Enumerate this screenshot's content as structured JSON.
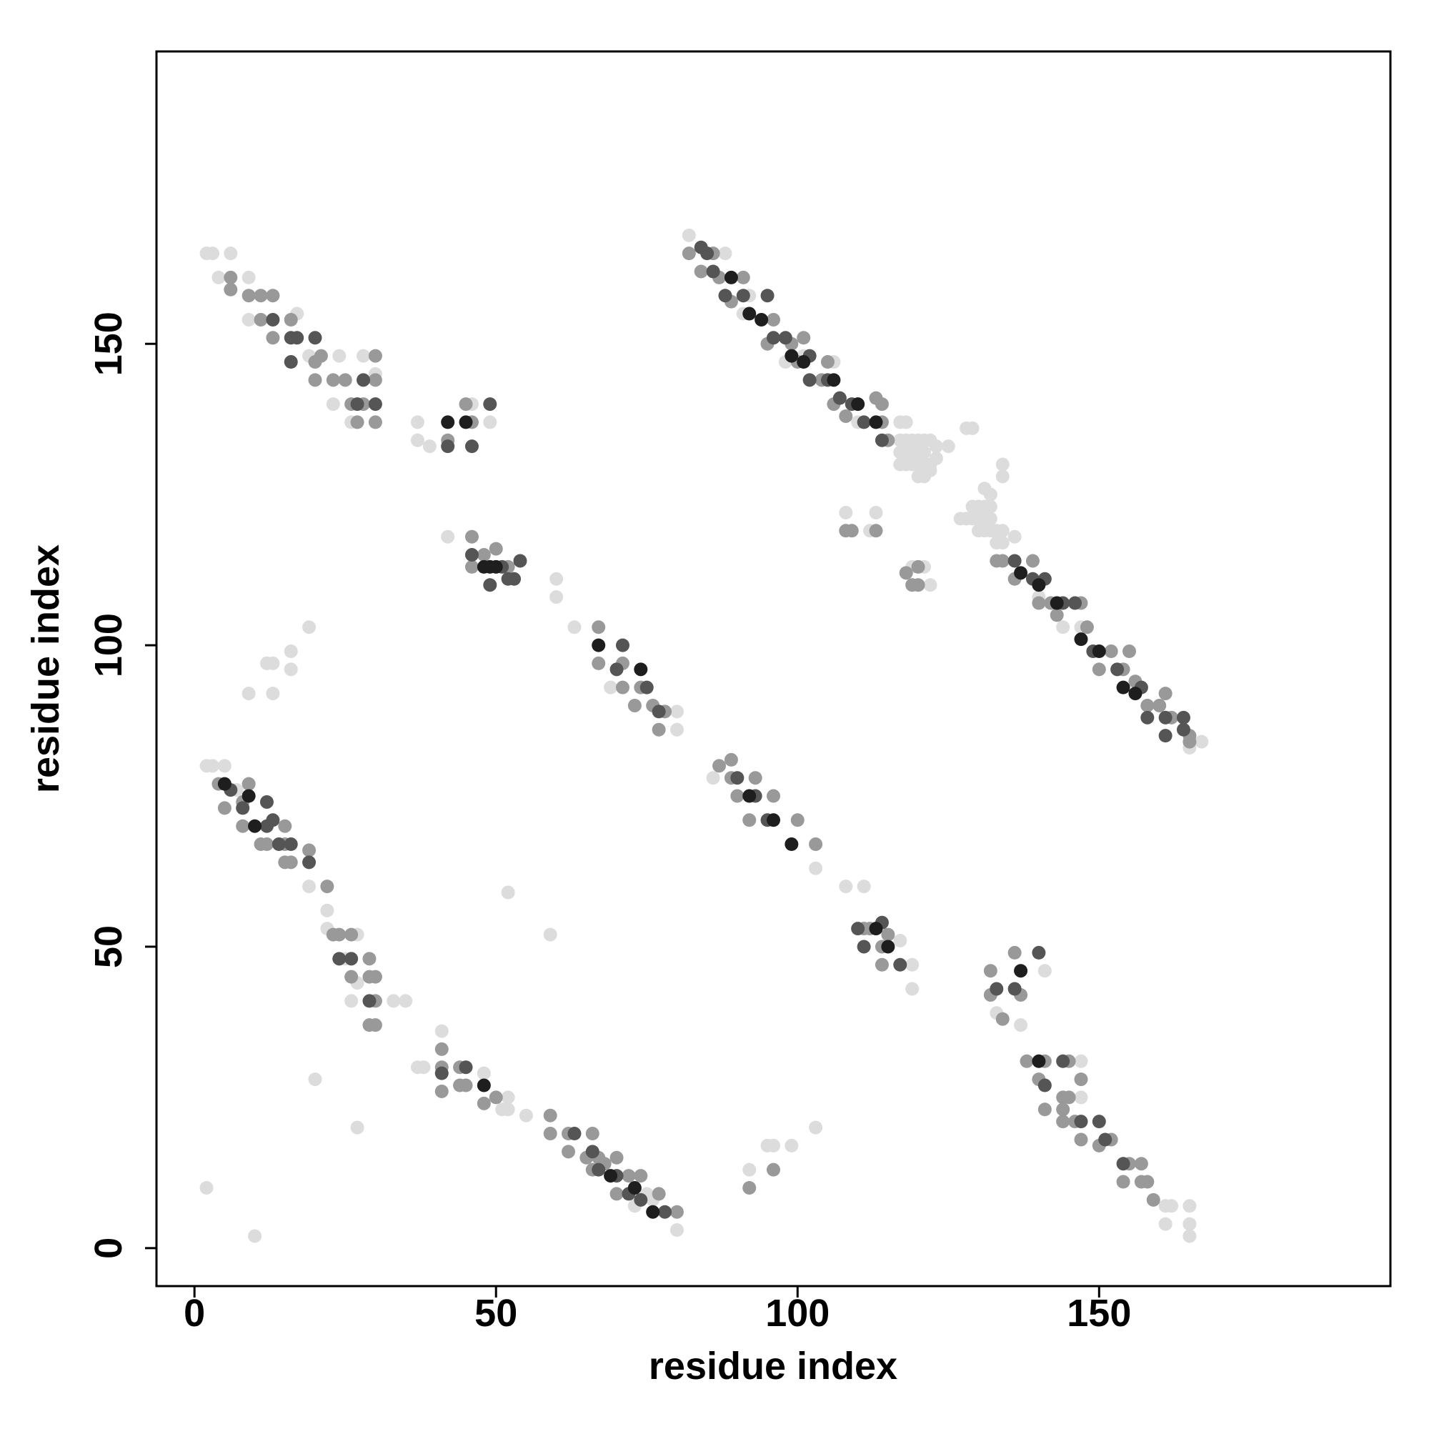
{
  "chart_data": {
    "type": "scatter",
    "xlabel": "residue index",
    "ylabel": "residue index",
    "xlim": [
      -6.3,
      198.3
    ],
    "ylim": [
      -6.3,
      198.5
    ],
    "xticks": [
      0,
      50,
      100,
      150
    ],
    "yticks": [
      0,
      50,
      100,
      150
    ],
    "series": [
      {
        "color": "#dcdcdc",
        "x": [
          82,
          88,
          92,
          91,
          98,
          101,
          106,
          110,
          117,
          118,
          117,
          118,
          119,
          120,
          121,
          122,
          117,
          118,
          119,
          120,
          121,
          123,
          125,
          117,
          118,
          119,
          120,
          121,
          122,
          120,
          121,
          122,
          123,
          128,
          129,
          134,
          134,
          127,
          128,
          129,
          130,
          131,
          132,
          129,
          130,
          131,
          132,
          131,
          132,
          130,
          131,
          132,
          133,
          134,
          133,
          134,
          108,
          112,
          113,
          119,
          121,
          122,
          136,
          140,
          144,
          147,
          167,
          165,
          2,
          3,
          5,
          7,
          22,
          22,
          27,
          25,
          27,
          26,
          33,
          35,
          19,
          37,
          38,
          41,
          48,
          51,
          52,
          52,
          55,
          73,
          75,
          76,
          80,
          42,
          60,
          60,
          63,
          69,
          80,
          80,
          86,
          103,
          108,
          111,
          117,
          119,
          119,
          133,
          137,
          141,
          147,
          147,
          161,
          162,
          161,
          165,
          165,
          165,
          2,
          3,
          6,
          4,
          9,
          9,
          17,
          19,
          24,
          28,
          30,
          23,
          26,
          37,
          37,
          39,
          46,
          49,
          2,
          10,
          20,
          27,
          52,
          59,
          9,
          12,
          13,
          13,
          16,
          16,
          19,
          92,
          95,
          96,
          99,
          103
        ],
        "y": [
          168,
          165,
          158,
          155,
          147,
          148,
          147,
          137,
          137,
          137,
          134,
          134,
          134,
          134,
          134,
          134,
          132,
          132,
          132,
          132,
          132,
          133,
          133,
          130,
          130,
          130,
          130,
          130,
          130,
          128,
          128,
          129,
          131,
          136,
          136,
          130,
          128,
          121,
          121,
          121,
          121,
          121,
          121,
          123,
          123,
          123,
          123,
          126,
          125,
          119,
          119,
          119,
          119,
          119,
          117,
          117,
          122,
          119,
          122,
          113,
          113,
          110,
          118,
          108,
          103,
          103,
          84,
          83,
          80,
          80,
          80,
          76,
          56,
          53,
          52,
          48,
          44,
          41,
          41,
          41,
          60,
          30,
          30,
          36,
          29,
          23,
          23,
          25,
          22,
          7,
          9,
          8,
          3,
          118,
          111,
          108,
          103,
          93,
          89,
          86,
          78,
          63,
          60,
          60,
          51,
          47,
          43,
          39,
          37,
          46,
          31,
          25,
          7,
          7,
          4,
          7,
          4,
          2,
          165,
          165,
          165,
          161,
          161,
          154,
          155,
          148,
          148,
          148,
          145,
          140,
          137,
          137,
          134,
          133,
          140,
          137,
          10,
          2,
          28,
          20,
          59,
          52,
          92,
          97,
          97,
          92,
          96,
          99,
          103,
          13,
          17,
          17,
          17,
          20
        ]
      },
      {
        "color": "#999999",
        "x": [
          82,
          84,
          86,
          87,
          91,
          89,
          96,
          95,
          99,
          101,
          100,
          104,
          105,
          106,
          108,
          113,
          114,
          114,
          115,
          108,
          109,
          113,
          118,
          120,
          133,
          134,
          136,
          139,
          140,
          142,
          143,
          147,
          148,
          150,
          152,
          154,
          155,
          156,
          158,
          160,
          161,
          162,
          165,
          165,
          4,
          5,
          8,
          8,
          9,
          11,
          12,
          15,
          15,
          15,
          16,
          19,
          22,
          23,
          24,
          26,
          26,
          29,
          30,
          29,
          30,
          30,
          29,
          46,
          46,
          48,
          50,
          52,
          67,
          67,
          71,
          71,
          73,
          74,
          76,
          78,
          77,
          87,
          89,
          89,
          90,
          93,
          96,
          92,
          100,
          103,
          111,
          112,
          114,
          114,
          115,
          132,
          132,
          136,
          137,
          134,
          138,
          140,
          141,
          145,
          144,
          144,
          145,
          141,
          147,
          144,
          146,
          147,
          150,
          152,
          154,
          155,
          157,
          157,
          158,
          159,
          41,
          41,
          41,
          44,
          44,
          45,
          48,
          50,
          59,
          59,
          62,
          62,
          66,
          65,
          66,
          67,
          68,
          70,
          70,
          72,
          74,
          77,
          80,
          6,
          6,
          9,
          11,
          13,
          11,
          13,
          16,
          20,
          21,
          20,
          23,
          25,
          30,
          30,
          26,
          28,
          27,
          30,
          42,
          45,
          46,
          92,
          96,
          119,
          120
        ],
        "y": [
          165,
          162,
          165,
          161,
          161,
          157,
          154,
          150,
          150,
          151,
          147,
          144,
          147,
          140,
          138,
          141,
          137,
          140,
          134,
          119,
          119,
          119,
          112,
          113,
          114,
          114,
          111,
          114,
          107,
          107,
          105,
          107,
          103,
          96,
          99,
          96,
          99,
          94,
          90,
          90,
          92,
          88,
          85,
          84,
          77,
          73,
          70,
          74,
          77,
          67,
          67,
          67,
          70,
          64,
          64,
          66,
          60,
          52,
          52,
          52,
          45,
          45,
          45,
          48,
          41,
          37,
          37,
          118,
          113,
          115,
          116,
          113,
          103,
          97,
          97,
          93,
          90,
          93,
          90,
          89,
          86,
          80,
          78,
          81,
          75,
          78,
          75,
          71,
          71,
          67,
          53,
          53,
          50,
          47,
          52,
          46,
          42,
          49,
          42,
          38,
          31,
          28,
          31,
          31,
          25,
          23,
          25,
          23,
          28,
          21,
          21,
          18,
          17,
          18,
          11,
          14,
          14,
          11,
          11,
          8,
          30,
          33,
          26,
          27,
          30,
          27,
          24,
          25,
          22,
          19,
          19,
          16,
          19,
          15,
          13,
          15,
          14,
          15,
          9,
          12,
          12,
          9,
          6,
          161,
          159,
          158,
          158,
          158,
          154,
          151,
          154,
          147,
          148,
          144,
          144,
          144,
          144,
          148,
          140,
          140,
          137,
          137,
          134,
          140,
          137,
          10,
          13,
          110,
          110
        ]
      },
      {
        "color": "#555555",
        "x": [
          84,
          85,
          86,
          88,
          91,
          95,
          96,
          98,
          102,
          102,
          105,
          107,
          109,
          111,
          114,
          136,
          139,
          141,
          144,
          146,
          149,
          153,
          157,
          158,
          161,
          164,
          161,
          164,
          6,
          8,
          12,
          12,
          13,
          14,
          19,
          16,
          24,
          26,
          29,
          51,
          52,
          53,
          54,
          49,
          46,
          70,
          71,
          75,
          77,
          90,
          93,
          95,
          110,
          111,
          114,
          117,
          133,
          136,
          140,
          141,
          144,
          147,
          150,
          151,
          154,
          66,
          67,
          70,
          72,
          74,
          78,
          45,
          41,
          63,
          13,
          16,
          17,
          20,
          28,
          30,
          27,
          49,
          42,
          46,
          16
        ],
        "y": [
          166,
          165,
          162,
          158,
          158,
          158,
          151,
          151,
          148,
          144,
          144,
          141,
          140,
          137,
          134,
          114,
          111,
          111,
          107,
          107,
          99,
          96,
          93,
          88,
          88,
          86,
          85,
          88,
          76,
          73,
          70,
          74,
          71,
          67,
          64,
          67,
          48,
          48,
          41,
          113,
          111,
          111,
          114,
          110,
          115,
          96,
          100,
          93,
          89,
          78,
          75,
          71,
          53,
          50,
          54,
          47,
          43,
          43,
          49,
          27,
          31,
          21,
          21,
          18,
          14,
          16,
          13,
          12,
          9,
          8,
          6,
          30,
          29,
          19,
          154,
          151,
          151,
          151,
          144,
          140,
          140,
          140,
          133,
          133,
          147
        ]
      },
      {
        "color": "#1e1e1e",
        "x": [
          92,
          99,
          101,
          106,
          110,
          113,
          147,
          150,
          154,
          156,
          143,
          140,
          137,
          9,
          10,
          5,
          48,
          49,
          50,
          99,
          92,
          96,
          140,
          113,
          115,
          137,
          48,
          73,
          76,
          69,
          42,
          45,
          67,
          74,
          94,
          89
        ],
        "y": [
          155,
          148,
          147,
          144,
          140,
          137,
          101,
          99,
          93,
          92,
          107,
          110,
          112,
          75,
          70,
          77,
          113,
          113,
          113,
          67,
          75,
          71,
          31,
          53,
          50,
          46,
          27,
          10,
          6,
          12,
          137,
          137,
          100,
          96,
          154,
          161
        ]
      }
    ]
  }
}
